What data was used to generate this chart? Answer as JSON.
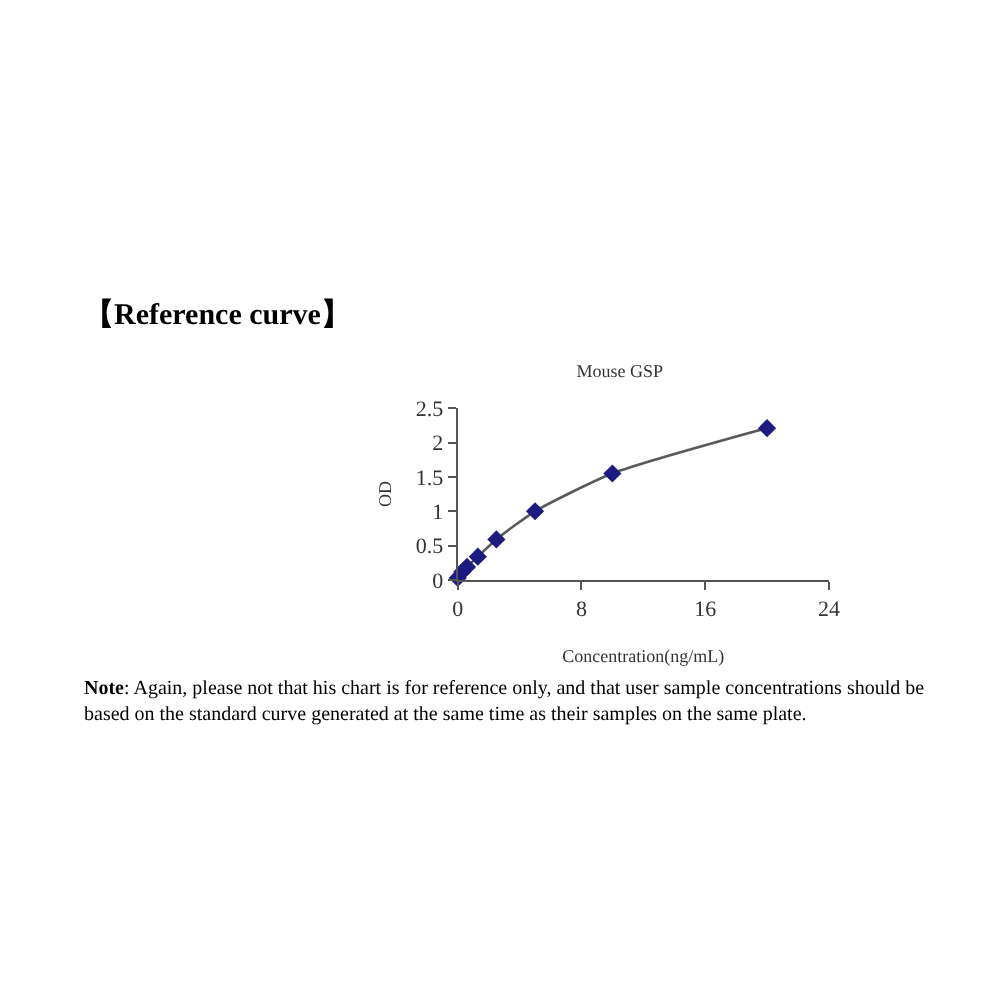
{
  "chart_data": {
    "type": "line",
    "title": "Mouse GSP",
    "xlabel": "Concentration(ng/mL)",
    "ylabel": "OD",
    "annotations": [
      "【Reference curve】",
      "Note: Again, please not that his chart is for reference only, and that user sample concentrations should be based on the standard curve generated at the same time as their samples on the same plate."
    ],
    "x": [
      0,
      0.3,
      0.6,
      1.3,
      2.5,
      5,
      10,
      20
    ],
    "series": [
      {
        "color": "#1c1c80",
        "values": [
          0.03,
          0.12,
          0.19,
          0.34,
          0.59,
          1.0,
          1.55,
          2.21
        ]
      }
    ],
    "xlim": [
      0,
      24
    ],
    "xticks": [
      0,
      8,
      16,
      24
    ],
    "ylim": [
      0,
      2.5
    ],
    "yticks": [
      0,
      0.5,
      1,
      1.5,
      2,
      2.5
    ],
    "marker": "diamond",
    "line_style": "solid"
  }
}
